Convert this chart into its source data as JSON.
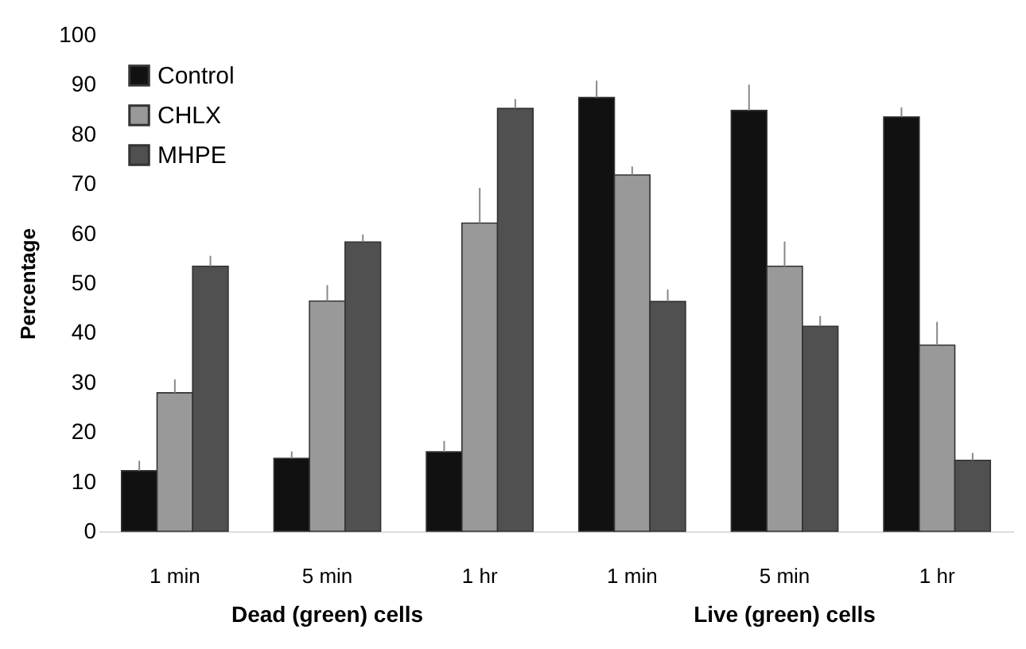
{
  "chart_data": {
    "type": "bar",
    "ylabel": "Percentage",
    "categories": [
      "1 min",
      "5 min",
      "1 hr",
      "1 min",
      "5 min",
      "1 hr"
    ],
    "series": [
      {
        "name": "Control",
        "color": "#111111",
        "values": [
          12.2,
          14.7,
          16.0,
          87.4,
          84.8,
          83.5
        ],
        "errors": [
          [
            12.2,
            14.2
          ],
          [
            14.7,
            16.1
          ],
          [
            16.0,
            18.2
          ],
          [
            87.4,
            90.8
          ],
          [
            84.8,
            90.0
          ],
          [
            83.5,
            85.4
          ]
        ]
      },
      {
        "name": "CHLX",
        "color": "#999999",
        "values": [
          27.9,
          46.4,
          62.1,
          71.8,
          53.4,
          37.5
        ],
        "errors": [
          [
            27.9,
            30.6
          ],
          [
            46.4,
            49.6
          ],
          [
            62.1,
            69.2
          ],
          [
            71.8,
            73.5
          ],
          [
            53.4,
            58.4
          ],
          [
            37.5,
            42.2
          ]
        ]
      },
      {
        "name": "MHPE",
        "color": "#505050",
        "values": [
          53.4,
          58.3,
          85.2,
          46.3,
          41.3,
          14.3
        ],
        "errors": [
          [
            53.4,
            55.5
          ],
          [
            58.3,
            59.8
          ],
          [
            85.2,
            87.1
          ],
          [
            46.3,
            48.7
          ],
          [
            41.3,
            43.4
          ],
          [
            14.3,
            15.8
          ]
        ]
      }
    ],
    "annotations": [
      "Dead (green) cells",
      "Live (green) cells"
    ],
    "ylim": [
      0,
      100
    ],
    "yticks": [
      0,
      10,
      20,
      30,
      40,
      50,
      60,
      70,
      80,
      90,
      100
    ],
    "grid": false,
    "legend": "top left"
  }
}
